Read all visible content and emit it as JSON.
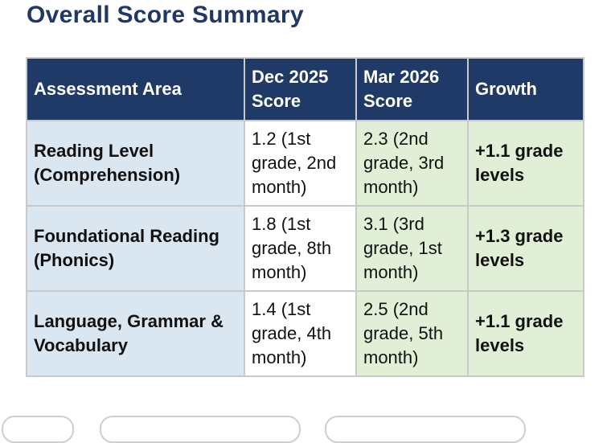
{
  "page": {
    "title": "Overall Score Summary"
  },
  "table": {
    "headers": [
      "Assessment Area",
      "Dec 2025 Score",
      "Mar 2026 Score",
      "Growth"
    ],
    "rows": [
      {
        "area": "Reading Level (Comprehension)",
        "dec": "1.2 (1st grade, 2nd month)",
        "mar": "2.3 (2nd grade, 3rd month)",
        "growth": "+1.1 grade levels"
      },
      {
        "area": "Foundational Reading (Phonics)",
        "dec": "1.8 (1st grade, 8th month)",
        "mar": "3.1 (3rd grade, 1st month)",
        "growth": "+1.3 grade levels"
      },
      {
        "area": "Language, Grammar & Vocabulary",
        "dec": "1.4 (1st grade, 4th month)",
        "mar": "2.5 (2nd grade, 5th month)",
        "growth": "+1.1 grade levels"
      }
    ]
  },
  "colors": {
    "title": "#1f3864",
    "header_bg": "#1f3a67",
    "area_bg": "#dae6f0",
    "mar_bg": "#e1efd7",
    "growth_bg": "#e1efd7"
  }
}
